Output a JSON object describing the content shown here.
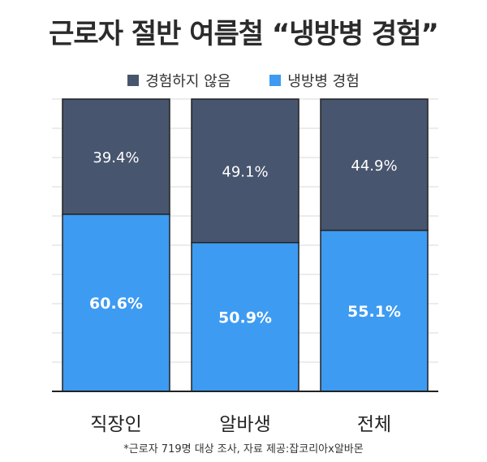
{
  "chart_data": {
    "type": "bar",
    "stacked": true,
    "title": "근로자 절반 여름철 “냉방병 경험”",
    "categories": [
      "직장인",
      "알바생",
      "전체"
    ],
    "series": [
      {
        "name": "냉방병 경험",
        "values": [
          60.6,
          50.9,
          55.1
        ],
        "labels": [
          "60.6%",
          "50.9%",
          "55.1%"
        ],
        "color": "#3d9bf2"
      },
      {
        "name": "경험하지 않음",
        "values": [
          39.4,
          49.1,
          44.9
        ],
        "labels": [
          "39.4%",
          "49.1%",
          "44.9%"
        ],
        "color": "#48556e"
      }
    ],
    "legend_order": [
      "경험하지 않음",
      "냉방병 경험"
    ],
    "ylim": [
      0,
      100
    ],
    "grid": true,
    "legend_position": "top-center"
  },
  "source_note": "*근로자 719명 대상 조사, 자료 제공:잡코리아x알바몬"
}
